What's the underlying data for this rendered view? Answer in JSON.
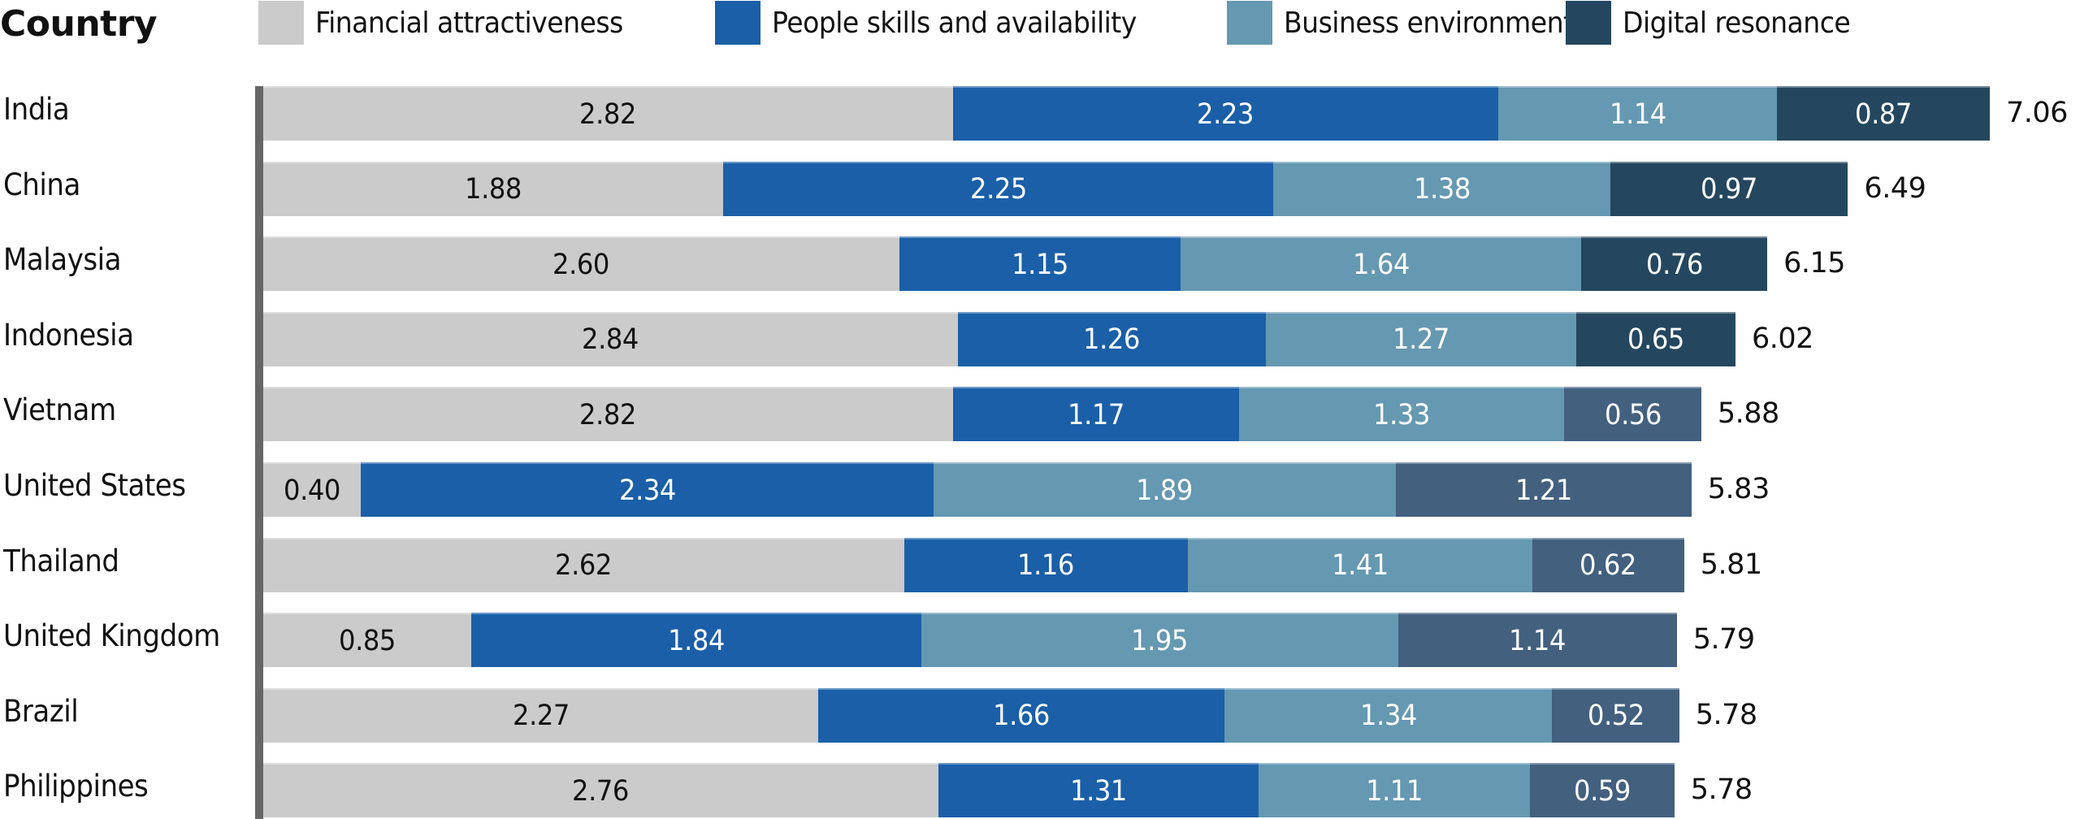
{
  "chart_data": {
    "type": "bar",
    "orientation": "horizontal",
    "stacked": true,
    "title": "",
    "category_axis_label": "Country",
    "xlabel": "",
    "ylabel": "Country",
    "grid": false,
    "legend_position": "top",
    "categories": [
      "India",
      "China",
      "Malaysia",
      "Indonesia",
      "Vietnam",
      "United States",
      "Thailand",
      "United Kingdom",
      "Brazil",
      "Philippines"
    ],
    "series": [
      {
        "name": "Financial attractiveness",
        "color": "#cbcbcb",
        "label_color": "#111111",
        "values": [
          2.82,
          1.88,
          2.6,
          2.84,
          2.82,
          0.4,
          2.62,
          0.85,
          2.27,
          2.76
        ]
      },
      {
        "name": "People skills and availability",
        "color": "#1a5fa8",
        "label_color": "#ffffff",
        "values": [
          2.23,
          2.25,
          1.15,
          1.26,
          1.17,
          2.34,
          1.16,
          1.84,
          1.66,
          1.31
        ]
      },
      {
        "name": "Business environment",
        "color": "#6598b1",
        "label_color": "#ffffff",
        "values": [
          1.14,
          1.38,
          1.64,
          1.27,
          1.33,
          1.89,
          1.41,
          1.95,
          1.34,
          1.11
        ]
      },
      {
        "name": "Digital resonance",
        "color": "#24475f",
        "label_color": "#ffffff",
        "values": [
          0.87,
          0.97,
          0.76,
          0.65,
          0.56,
          1.21,
          0.62,
          1.14,
          0.52,
          0.59
        ],
        "point_colors": [
          "#24475f",
          "#24475f",
          "#24475f",
          "#24475f",
          "#43607f",
          "#43607f",
          "#43607f",
          "#43607f",
          "#43607f",
          "#43607f"
        ]
      }
    ],
    "value_labels": [
      [
        "2.82",
        "2.23",
        "1.14",
        "0.87"
      ],
      [
        "1.88",
        "2.25",
        "1.38",
        "0.97"
      ],
      [
        "2.60",
        "1.15",
        "1.64",
        "0.76"
      ],
      [
        "2.84",
        "1.26",
        "1.27",
        "0.65"
      ],
      [
        "2.82",
        "1.17",
        "1.33",
        "0.56"
      ],
      [
        "0.40",
        "2.34",
        "1.89",
        "1.21"
      ],
      [
        "2.62",
        "1.16",
        "1.41",
        "0.62"
      ],
      [
        "0.85",
        "1.84",
        "1.95",
        "1.14"
      ],
      [
        "2.27",
        "1.66",
        "1.34",
        "0.52"
      ],
      [
        "2.76",
        "1.31",
        "1.11",
        "0.59"
      ]
    ],
    "totals": [
      7.06,
      6.49,
      6.15,
      6.02,
      5.88,
      5.83,
      5.81,
      5.79,
      5.78,
      5.78
    ],
    "total_labels": [
      "7.06",
      "6.49",
      "6.15",
      "6.02",
      "5.88",
      "5.83",
      "5.81",
      "5.79",
      "5.78",
      "5.78"
    ],
    "xlim": [
      0,
      7.06
    ],
    "axis_color": "#666666"
  }
}
